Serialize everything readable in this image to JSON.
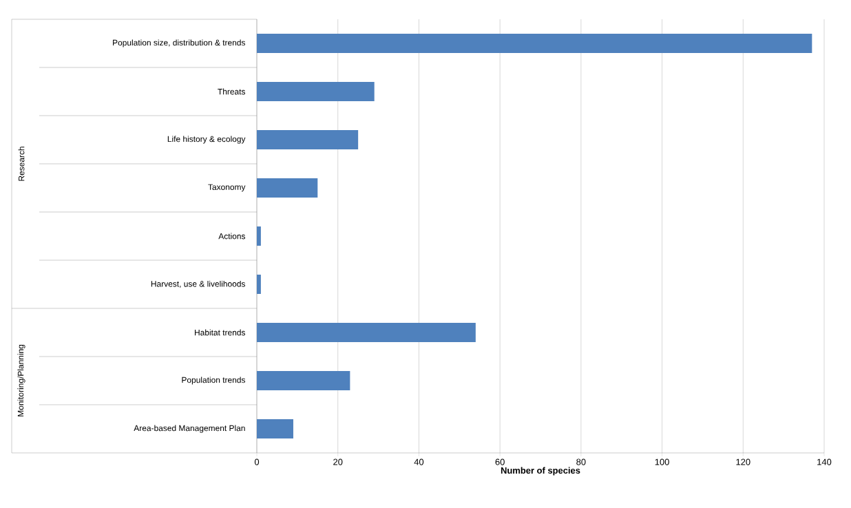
{
  "chart_data": {
    "type": "bar",
    "orientation": "horizontal",
    "categories": [
      "Population size, distribution & trends",
      "Threats",
      "Life history & ecology",
      "Taxonomy",
      "Actions",
      "Harvest, use & livelihoods",
      "Habitat trends",
      "Population trends",
      "Area-based Management Plan"
    ],
    "values": [
      137,
      29,
      25,
      15,
      1,
      1,
      54,
      23,
      9
    ],
    "color": "#4f81bd",
    "xlim": [
      0,
      140
    ],
    "xticks": [
      0,
      20,
      40,
      60,
      80,
      100,
      120,
      140
    ],
    "xlabel": "Number of species",
    "grid": "x",
    "annotations": [
      "Research",
      "Monitoring/Planning"
    ]
  }
}
